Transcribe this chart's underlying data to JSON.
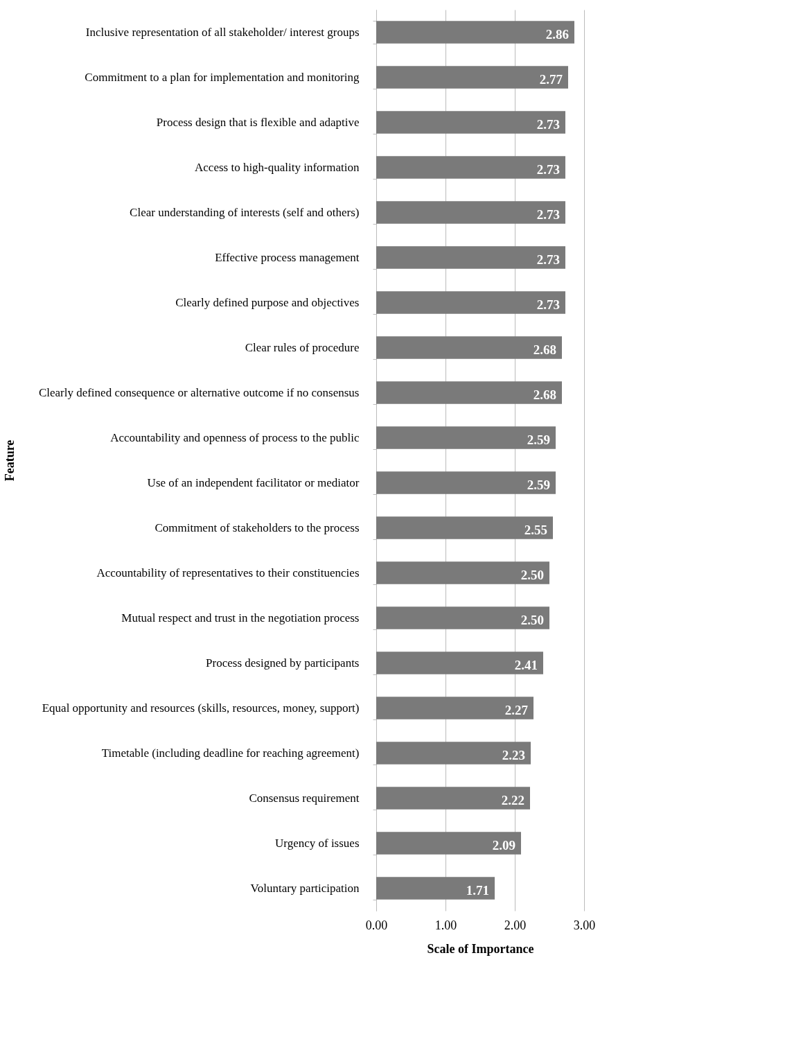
{
  "chart_data": {
    "type": "bar",
    "orientation": "horizontal",
    "xlabel": "Scale of Importance",
    "ylabel": "Feature",
    "categories": [
      "Inclusive representation of all stakeholder/ interest groups",
      "Commitment to a plan for implementation and monitoring",
      "Process design that is flexible and adaptive",
      "Access to high-quality information",
      "Clear understanding of interests (self and others)",
      "Effective process management",
      "Clearly defined purpose and objectives",
      "Clear rules of procedure",
      "Clearly defined consequence or alternative outcome if no consensus",
      "Accountability and openness of process to the public",
      "Use of an independent facilitator or mediator",
      "Commitment of stakeholders to the process",
      "Accountability of representatives to their constituencies",
      "Mutual respect and trust in the negotiation process",
      "Process designed by participants",
      "Equal opportunity and resources (skills, resources, money, support)",
      "Timetable (including deadline for reaching agreement)",
      "Consensus requirement",
      "Urgency of issues",
      "Voluntary participation"
    ],
    "values": [
      2.86,
      2.77,
      2.73,
      2.73,
      2.73,
      2.73,
      2.73,
      2.68,
      2.68,
      2.59,
      2.59,
      2.55,
      2.5,
      2.5,
      2.41,
      2.27,
      2.23,
      2.22,
      2.09,
      1.71
    ],
    "value_labels": [
      "2.86",
      "2.77",
      "2.73",
      "2.73",
      "2.73",
      "2.73",
      "2.73",
      "2.68",
      "2.68",
      "2.59",
      "2.59",
      "2.55",
      "2.50",
      "2.50",
      "2.41",
      "2.27",
      "2.23",
      "2.22",
      "2.09",
      "1.71"
    ],
    "color": "#7a7a7a",
    "xlim": [
      0,
      3
    ],
    "xticks": [
      {
        "value": 0,
        "label": "0.00"
      },
      {
        "value": 1,
        "label": "1.00"
      },
      {
        "value": 2,
        "label": "2.00"
      },
      {
        "value": 3,
        "label": "3.00"
      }
    ],
    "grid": "x"
  }
}
